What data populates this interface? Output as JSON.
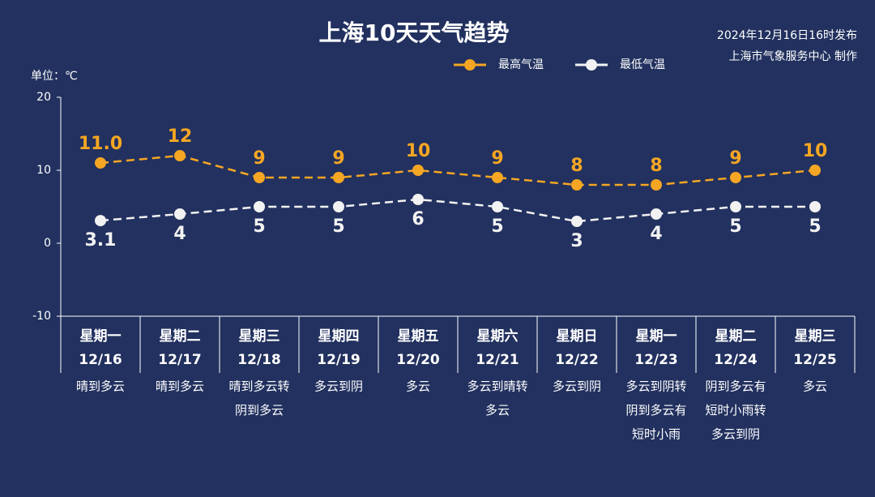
{
  "chart_data": {
    "type": "line",
    "title": "上海10天天气趋势",
    "publish_note": "2024年12月16日16时发布",
    "producer_note": "上海市气象服务中心 制作",
    "y_label": "单位：℃",
    "categories": [
      "12/16",
      "12/17",
      "12/18",
      "12/19",
      "12/20",
      "12/21",
      "12/22",
      "12/23",
      "12/24",
      "12/25"
    ],
    "weekdays": [
      "星期一",
      "星期二",
      "星期三",
      "星期四",
      "星期五",
      "星期六",
      "星期日",
      "星期一",
      "星期二",
      "星期三"
    ],
    "weather": [
      [
        "晴到多云"
      ],
      [
        "晴到多云"
      ],
      [
        "晴到多云转",
        "阴到多云"
      ],
      [
        "多云到阴"
      ],
      [
        "多云"
      ],
      [
        "多云到晴转",
        "多云"
      ],
      [
        "多云到阴"
      ],
      [
        "多云到阴转",
        "阴到多云有",
        "短时小雨"
      ],
      [
        "阴到多云有",
        "短时小雨转",
        "多云到阴"
      ],
      [
        "多云"
      ]
    ],
    "series": [
      {
        "name": "最高气温",
        "color": "#f5a623",
        "label_position": "above",
        "values": [
          11,
          12,
          9,
          9,
          10,
          9,
          8,
          8,
          9,
          10
        ],
        "value_labels": [
          "11.0",
          "12",
          "9",
          "9",
          "10",
          "9",
          "8",
          "8",
          "9",
          "10"
        ]
      },
      {
        "name": "最低气温",
        "color": "#f2f2f2",
        "label_position": "below",
        "values": [
          3.1,
          4,
          5,
          5,
          6,
          5,
          3,
          4,
          5,
          5
        ]
      }
    ],
    "ylim": [
      -10,
      20
    ],
    "yticks": [
      -10,
      0,
      10,
      20
    ],
    "grid": false
  }
}
